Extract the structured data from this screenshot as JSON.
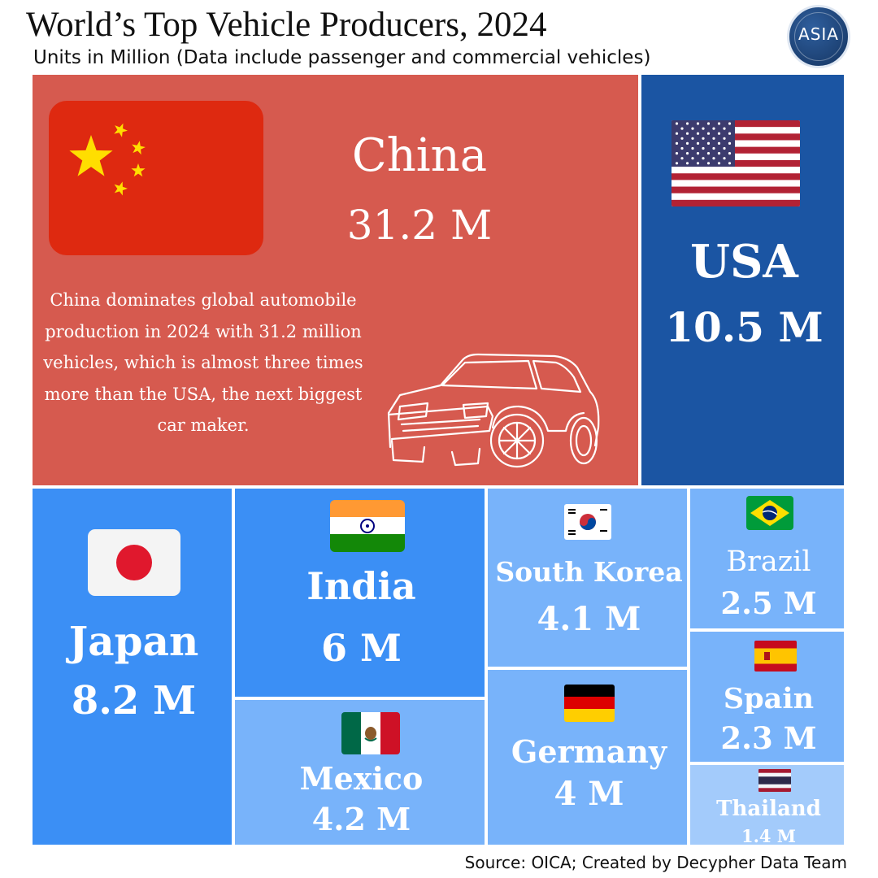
{
  "title": "World’s Top Vehicle Producers, 2024",
  "subtitle": "Units in Million (Data include passenger and commercial vehicles)",
  "logo_text": "ASIA",
  "source": "Source: OICA; Created by Decypher Data Team",
  "description": "China dominates global automobile production in 2024 with 31.2 million vehicles, which is almost three times more than the USA, the next biggest car maker.",
  "colors": {
    "china": "#d65a4f",
    "usa": "#1b55a3",
    "japan_india": "#3b8ff5",
    "medium": "#78b3fa",
    "light": "#a3cbfb"
  },
  "icons": [
    "china-flag-icon",
    "usa-flag-icon",
    "car-icon",
    "japan-flag-icon",
    "india-flag-icon",
    "south-korea-flag-icon",
    "brazil-flag-icon",
    "spain-flag-icon",
    "mexico-flag-icon",
    "germany-flag-icon",
    "thailand-flag-icon"
  ],
  "chart_data": {
    "type": "treemap",
    "title": "World’s Top Vehicle Producers, 2024",
    "subtitle": "Units in Million (Data include passenger and commercial vehicles)",
    "unit": "Million units",
    "categories": [
      "China",
      "USA",
      "Japan",
      "India",
      "Mexico",
      "South Korea",
      "Germany",
      "Brazil",
      "Spain",
      "Thailand"
    ],
    "values": [
      31.2,
      10.5,
      8.2,
      6,
      4.2,
      4.1,
      4,
      2.5,
      2.3,
      1.4
    ],
    "labels": [
      "31.2 M",
      "10.5 M",
      "8.2 M",
      "6 M",
      "4.2 M",
      "4.1 M",
      "4 M",
      "2.5 M",
      "2.3 M",
      "1.4 M"
    ]
  }
}
